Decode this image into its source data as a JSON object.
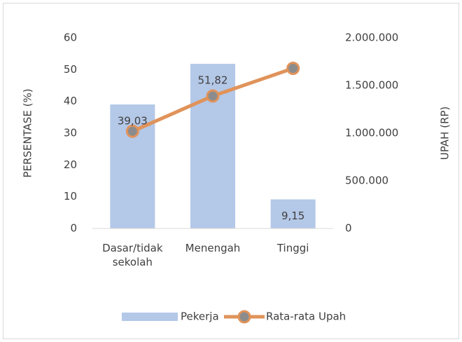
{
  "chart_data": {
    "type": "bar",
    "categories": [
      "Dasar/tidak sekolah",
      "Menengah",
      "Tinggi"
    ],
    "series": [
      {
        "name": "Pekerja",
        "type": "bar",
        "color": "#b4c8e8",
        "values": [
          39.03,
          51.82,
          9.15
        ],
        "value_labels": [
          "39,03",
          "51,82",
          "9,15"
        ]
      },
      {
        "name": "Rata-rata Upah",
        "type": "line",
        "axis": "y2",
        "color": "#e0935a",
        "values": [
          1020000,
          1390000,
          1680000
        ]
      }
    ],
    "ylabel": "PERSENTASE (%)",
    "y2label": "UPAH (RP)",
    "ylim": [
      0,
      60
    ],
    "yticks": [
      0,
      10,
      20,
      30,
      40,
      50,
      60
    ],
    "y2lim": [
      0,
      2000000
    ],
    "y2ticks": [
      0,
      {
        "value": 500000,
        "label": "500.000"
      },
      {
        "value": 1000000,
        "label": "1.000.000"
      },
      {
        "value": 1500000,
        "label": "1.500.000"
      },
      {
        "value": 2000000,
        "label": "2.000.000"
      }
    ],
    "legend": "bottom"
  }
}
